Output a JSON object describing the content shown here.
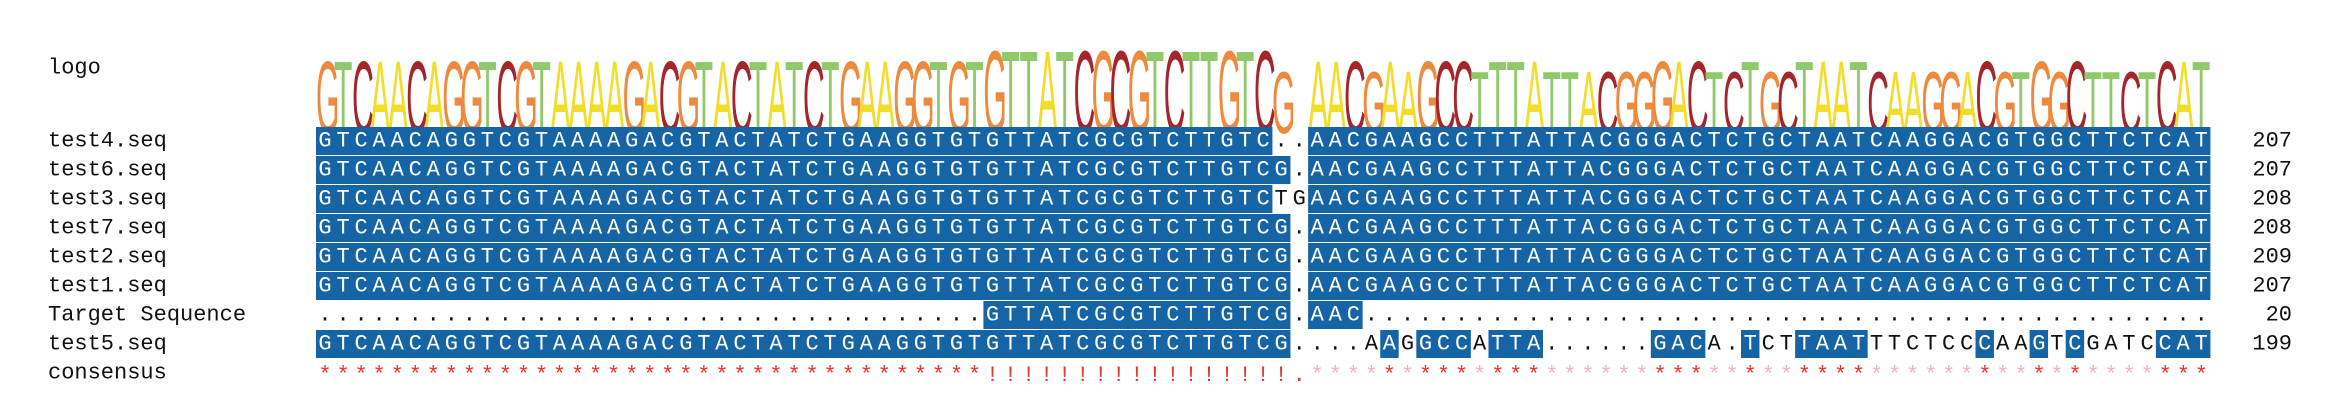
{
  "logo": {
    "name": "logo",
    "letters": [
      "G",
      "T",
      "C",
      "A",
      "A",
      "C",
      "A",
      "G",
      "G",
      "T",
      "C",
      "G",
      "T",
      "A",
      "A",
      "A",
      "A",
      "G",
      "A",
      "C",
      "G",
      "T",
      "A",
      "C",
      "T",
      "A",
      "T",
      "C",
      "T",
      "G",
      "A",
      "A",
      "G",
      "G",
      "T",
      "G",
      "T",
      "G",
      "T",
      "T",
      "A",
      "T",
      "C",
      "G",
      "C",
      "G",
      "T",
      "C",
      "T",
      "T",
      "G",
      "T",
      "C",
      "G",
      null,
      "A",
      "A",
      "C",
      "G",
      "A",
      "A",
      "G",
      "C",
      "C",
      "T",
      "T",
      "T",
      "A",
      "T",
      "T",
      "A",
      "C",
      "G",
      "G",
      "G",
      "A",
      "C",
      "T",
      "C",
      "T",
      "G",
      "C",
      "T",
      "A",
      "A",
      "T",
      "C",
      "A",
      "A",
      "G",
      "G",
      "A",
      "C",
      "G",
      "T",
      "G",
      "G",
      "C",
      "T",
      "T",
      "C",
      "T",
      "C",
      "A",
      "T"
    ]
  },
  "rows": [
    {
      "name": "test4.seq",
      "sequence": "GTCAACAGGTCGTAAAAGACGTACTATCTGAAGGTGTGTTATCGCGTCTTGTC..AACGAAGCCTTTATTACGGGACTCTGCTAATCAAGGACGTGGCTTCTCAT",
      "count": 207
    },
    {
      "name": "test6.seq",
      "sequence": "GTCAACAGGTCGTAAAAGACGTACTATCTGAAGGTGTGTTATCGCGTCTTGTCG.AACGAAGCCTTTATTACGGGACTCTGCTAATCAAGGACGTGGCTTCTCAT",
      "count": 207
    },
    {
      "name": "test3.seq",
      "sequence": "GTCAACAGGTCGTAAAAGACGTACTATCTGAAGGTGTGTTATCGCGTCTTGTCTGAACGAAGCCTTTATTACGGGACTCTGCTAATCAAGGACGTGGCTTCTCAT",
      "count": 208
    },
    {
      "name": "test7.seq",
      "sequence": "GTCAACAGGTCGTAAAAGACGTACTATCTGAAGGTGTGTTATCGCGTCTTGTCG.AACGAAGCCTTTATTACGGGACTCTGCTAATCAAGGACGTGGCTTCTCAT",
      "count": 208
    },
    {
      "name": "test2.seq",
      "sequence": "GTCAACAGGTCGTAAAAGACGTACTATCTGAAGGTGTGTTATCGCGTCTTGTCG.AACGAAGCCTTTATTACGGGACTCTGCTAATCAAGGACGTGGCTTCTCAT",
      "count": 209
    },
    {
      "name": "test1.seq",
      "sequence": "GTCAACAGGTCGTAAAAGACGTACTATCTGAAGGTGTGTTATCGCGTCTTGTCG.AACGAAGCCTTTATTACGGGACTCTGCTAATCAAGGACGTGGCTTCTCAT",
      "count": 207
    },
    {
      "name": "Target Sequence",
      "sequence": ".....................................GTTATCGCGTCTTGTCG.AAC...............................................",
      "count": 20
    },
    {
      "name": "test5.seq",
      "sequence": "GTCAACAGGTCGTAAAAGACGTACTATCTGAAGGTGTGTTATCGCGTCTTGTCG....AAGGCCATTA......GACA.TCTTAATTTCTCCCAAGTCGATCCAT",
      "count": 199
    }
  ],
  "consensus": {
    "name": "consensus",
    "symbols": "*************************************!!!!!!!!!!!!!!!!!.**************************************************"
  }
}
